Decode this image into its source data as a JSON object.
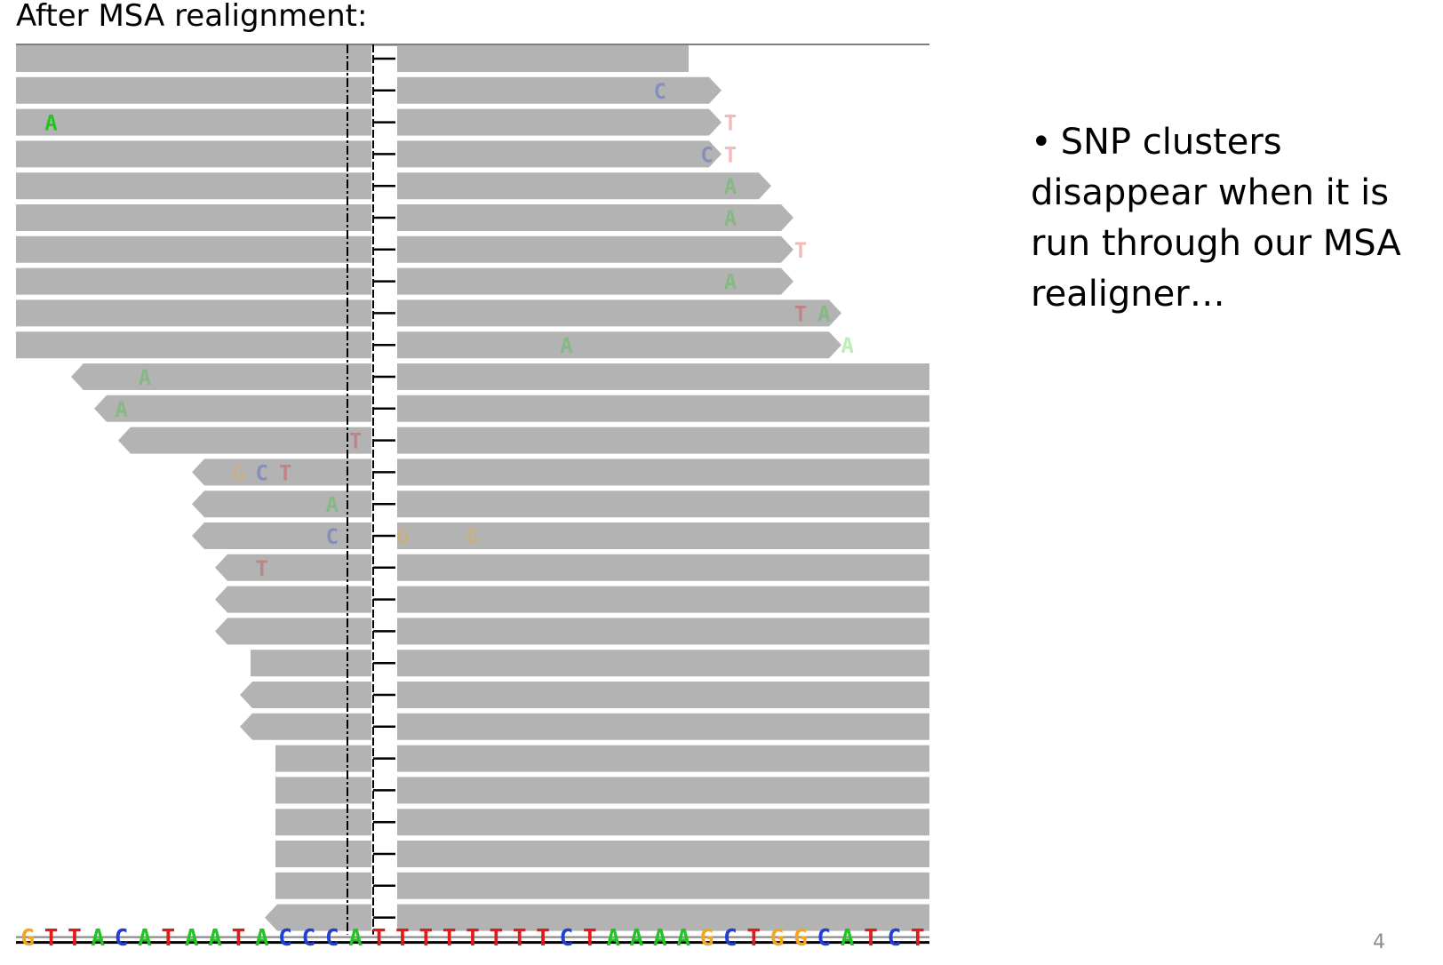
{
  "slide": {
    "title": "After MSA realignment:",
    "bullet_marker": "•",
    "bullet_text": "SNP clusters disappear when it is run through our MSA realigner…",
    "page_number": "4"
  },
  "colors": {
    "read": "#b3b3b3",
    "A": "#22c422",
    "C": "#1f3fd8",
    "G": "#f2a623",
    "T": "#e01b1b",
    "track_line": "#808080",
    "guide": "#000000"
  },
  "reference": {
    "sequence": "GTTACATAATACCCATTTTTTTTCTAAAAGCTGGCATCT"
  },
  "reads": [
    {
      "dir": "none",
      "snps": []
    },
    {
      "dir": "right",
      "snps": [
        {
          "base": "C",
          "col": 27
        }
      ]
    },
    {
      "dir": "right",
      "snps": [
        {
          "base": "A",
          "col": 1,
          "strong": true
        },
        {
          "base": "T",
          "col": 30
        }
      ]
    },
    {
      "dir": "right",
      "snps": [
        {
          "base": "C",
          "col": 29
        },
        {
          "base": "T",
          "col": 30
        }
      ]
    },
    {
      "dir": "right",
      "snps": [
        {
          "base": "A",
          "col": 30
        }
      ]
    },
    {
      "dir": "right",
      "snps": [
        {
          "base": "A",
          "col": 30
        }
      ]
    },
    {
      "dir": "right",
      "snps": [
        {
          "base": "T",
          "col": 33
        }
      ]
    },
    {
      "dir": "right",
      "snps": [
        {
          "base": "A",
          "col": 30
        }
      ]
    },
    {
      "dir": "right",
      "snps": [
        {
          "base": "T",
          "col": 33
        },
        {
          "base": "A",
          "col": 34
        }
      ]
    },
    {
      "dir": "right",
      "snps": [
        {
          "base": "A",
          "col": 23
        },
        {
          "base": "A",
          "col": 35
        }
      ]
    },
    {
      "dir": "left",
      "snps": [
        {
          "base": "A",
          "col": 5
        }
      ]
    },
    {
      "dir": "left",
      "snps": [
        {
          "base": "A",
          "col": 4
        }
      ]
    },
    {
      "dir": "left",
      "snps": [
        {
          "base": "T",
          "col": 14
        }
      ]
    },
    {
      "dir": "left",
      "snps": [
        {
          "base": "G",
          "col": 9
        },
        {
          "base": "C",
          "col": 10
        },
        {
          "base": "T",
          "col": 11
        }
      ]
    },
    {
      "dir": "left",
      "snps": [
        {
          "base": "A",
          "col": 13
        }
      ]
    },
    {
      "dir": "left",
      "snps": [
        {
          "base": "C",
          "col": 13
        },
        {
          "base": "G",
          "col": 16
        },
        {
          "base": "G",
          "col": 19
        }
      ]
    },
    {
      "dir": "left",
      "snps": [
        {
          "base": "T",
          "col": 10
        }
      ]
    },
    {
      "dir": "left",
      "snps": []
    },
    {
      "dir": "left",
      "snps": []
    },
    {
      "dir": "none",
      "snps": []
    },
    {
      "dir": "left",
      "snps": []
    },
    {
      "dir": "left",
      "snps": []
    },
    {
      "dir": "none",
      "snps": []
    },
    {
      "dir": "none",
      "snps": []
    },
    {
      "dir": "none",
      "snps": []
    },
    {
      "dir": "none",
      "snps": []
    },
    {
      "dir": "none",
      "snps": []
    },
    {
      "dir": "left",
      "snps": []
    }
  ]
}
